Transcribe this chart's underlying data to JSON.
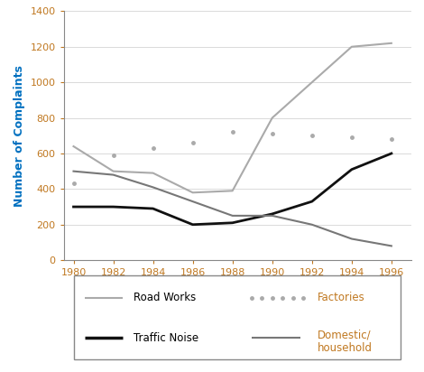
{
  "years": [
    1980,
    1982,
    1984,
    1986,
    1988,
    1990,
    1992,
    1994,
    1996
  ],
  "road_works": [
    640,
    500,
    490,
    380,
    390,
    800,
    1000,
    1200,
    1220
  ],
  "factories": [
    430,
    590,
    630,
    660,
    720,
    710,
    700,
    690,
    680
  ],
  "traffic_noise": [
    300,
    300,
    290,
    200,
    210,
    260,
    330,
    510,
    600
  ],
  "domestic": [
    500,
    480,
    410,
    330,
    250,
    250,
    200,
    120,
    80
  ],
  "road_works_color": "#aaaaaa",
  "factories_color": "#aaaaaa",
  "traffic_noise_color": "#111111",
  "domestic_color": "#777777",
  "ylabel": "Number of Complaints",
  "ylim": [
    0,
    1400
  ],
  "xlim": [
    1979.5,
    1997
  ],
  "yticks": [
    0,
    200,
    400,
    600,
    800,
    1000,
    1200,
    1400
  ],
  "xticks": [
    1980,
    1982,
    1984,
    1986,
    1988,
    1990,
    1992,
    1994,
    1996
  ],
  "legend_road_works": "Road Works",
  "legend_factories": "Factories",
  "legend_traffic": "Traffic Noise",
  "legend_domestic": "Domestic/\nhousehold",
  "tick_color": "#C07820",
  "ylabel_color": "#0070C0",
  "factories_label_color": "#C07820",
  "domestic_label_color": "#C07820",
  "traffic_label_color": "#000000",
  "road_works_label_color": "#000000"
}
